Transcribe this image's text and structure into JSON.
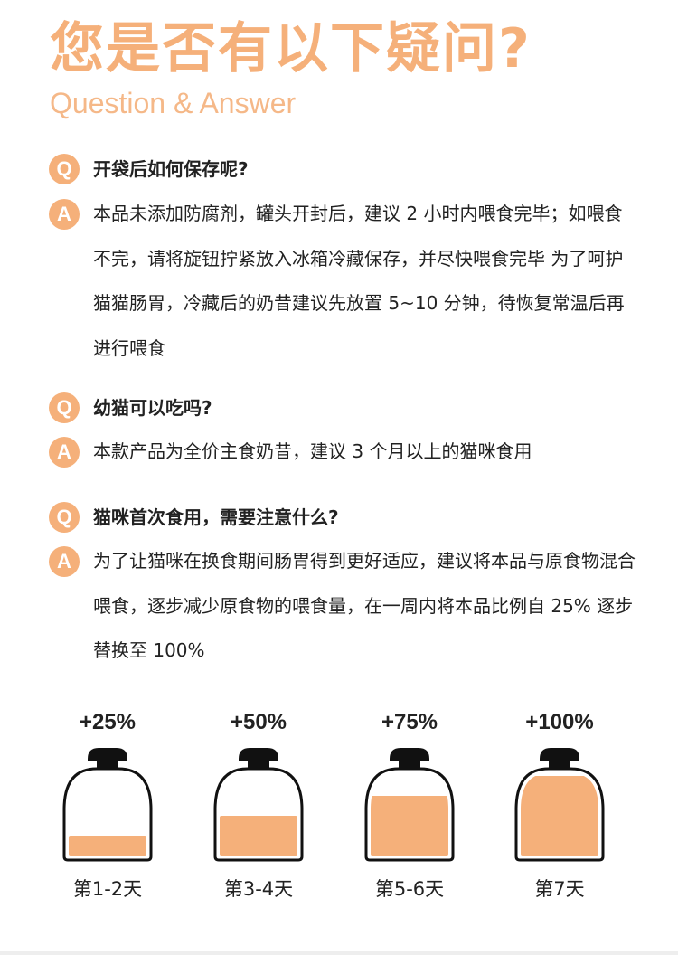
{
  "header": {
    "title": "您是否有以下疑问?",
    "subtitle": "Question & Answer"
  },
  "badges": {
    "q": "Q",
    "a": "A"
  },
  "qa": [
    {
      "question": "开袋后如何保存呢?",
      "answer": "本品未添加防腐剂，罐头开封后，建议 2 小时内喂食完毕；如喂食不完，请将旋钮拧紧放入冰箱冷藏保存，并尽快喂食完毕 为了呵护猫猫肠胃，冷藏后的奶昔建议先放置 5~10 分钟，待恢复常温后再进行喂食"
    },
    {
      "question": "幼猫可以吃吗?",
      "answer": "本款产品为全价主食奶昔，建议 3 个月以上的猫咪食用"
    },
    {
      "question": "猫咪首次食用，需要注意什么?",
      "answer": "为了让猫咪在换食期间肠胃得到更好适应，建议将本品与原食物混合喂食，逐步减少原食物的喂食量，在一周内将本品比例自 25% 逐步替换至 100%"
    }
  ],
  "schedule": [
    {
      "percent": "+25%",
      "day": "第1-2天",
      "fill": 0.25
    },
    {
      "percent": "+50%",
      "day": "第3-4天",
      "fill": 0.5
    },
    {
      "percent": "+75%",
      "day": "第5-6天",
      "fill": 0.75
    },
    {
      "percent": "+100%",
      "day": "第7天",
      "fill": 1.0
    }
  ],
  "colors": {
    "accent": "#f5b07a",
    "text": "#222222"
  }
}
